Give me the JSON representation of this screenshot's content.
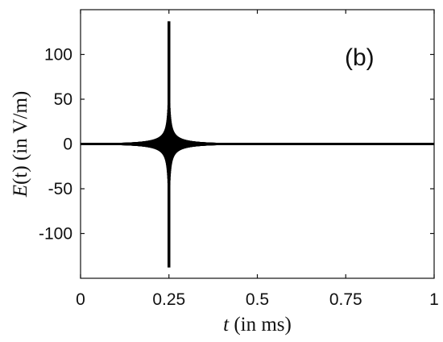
{
  "chart_data": {
    "type": "line",
    "panel_label": "(b)",
    "xlabel": "t (in ms)",
    "ylabel": "E(t) (in V/m)",
    "xlim": [
      0,
      1
    ],
    "ylim": [
      -150,
      150
    ],
    "x_ticks": [
      0,
      0.25,
      0.5,
      0.75,
      1
    ],
    "x_tick_labels": [
      "0",
      "0.25",
      "0.5",
      "0.75",
      "1"
    ],
    "y_ticks": [
      100,
      50,
      0,
      -50,
      -100
    ],
    "y_tick_labels": [
      "100",
      "50",
      "0",
      "-50",
      "-100"
    ],
    "grid": false,
    "line_color": "#000000",
    "series": [
      {
        "description_points": [
          {
            "x": 0.0,
            "y": 0
          },
          {
            "x": 0.15,
            "y": 0.5
          },
          {
            "x": 0.2,
            "y": 2
          },
          {
            "x": 0.225,
            "y": 4
          },
          {
            "x": 0.24,
            "y": 20
          },
          {
            "x": 0.245,
            "y": 30
          },
          {
            "x": 0.25,
            "y": 137
          },
          {
            "x": 0.25,
            "y": -138
          },
          {
            "x": 0.255,
            "y": -30
          },
          {
            "x": 0.26,
            "y": 18
          },
          {
            "x": 0.275,
            "y": 4
          },
          {
            "x": 0.3,
            "y": 2
          },
          {
            "x": 0.4,
            "y": 0.5
          },
          {
            "x": 1.0,
            "y": 0
          }
        ]
      }
    ]
  }
}
